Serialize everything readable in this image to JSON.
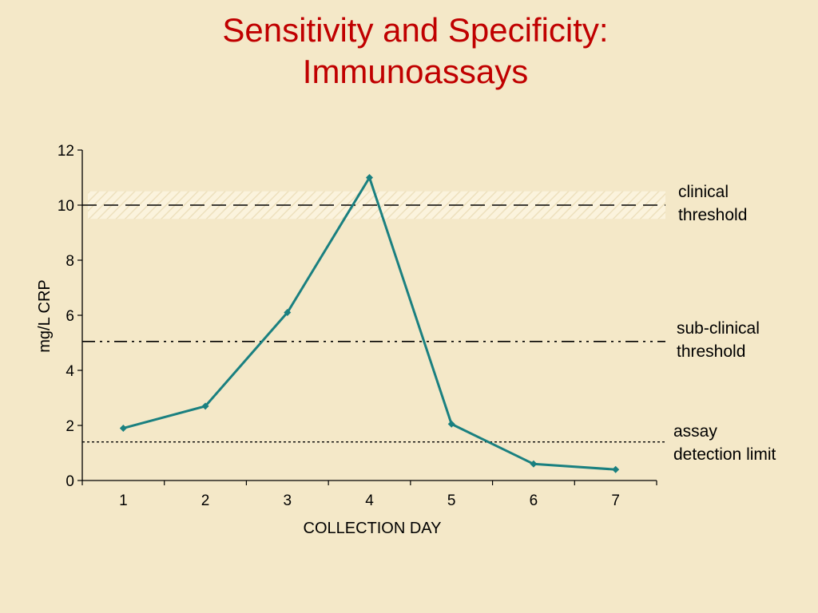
{
  "title": {
    "line1": "Sensitivity and Specificity:",
    "line2": "Immunoassays"
  },
  "chart_data": {
    "type": "line",
    "title": "Sensitivity and Specificity: Immunoassays",
    "xlabel": "COLLECTION DAY",
    "ylabel": "mg/L CRP",
    "categories": [
      "1",
      "2",
      "3",
      "4",
      "5",
      "6",
      "7"
    ],
    "x": [
      1,
      2,
      3,
      4,
      5,
      6,
      7
    ],
    "values": [
      1.9,
      2.7,
      6.1,
      11.0,
      2.05,
      0.6,
      0.4
    ],
    "ylim": [
      0,
      12
    ],
    "yticks": [
      0,
      2,
      4,
      6,
      8,
      10,
      12
    ],
    "grid": false,
    "line_color": "#1a8080",
    "reference_lines": [
      {
        "value": 10,
        "style": "dashed",
        "band": [
          9.5,
          10.5
        ],
        "label_lines": [
          "clinical",
          "threshold"
        ]
      },
      {
        "value": 5.05,
        "style": "dash-dot-dot",
        "label_lines": [
          "sub-clinical",
          "threshold"
        ]
      },
      {
        "value": 1.4,
        "style": "dotted",
        "label_lines": [
          "assay",
          "detection limit"
        ]
      }
    ]
  },
  "colors": {
    "background": "#f4e8c8",
    "title": "#c00000",
    "series": "#1a8080",
    "band": "#fbf3dd"
  }
}
